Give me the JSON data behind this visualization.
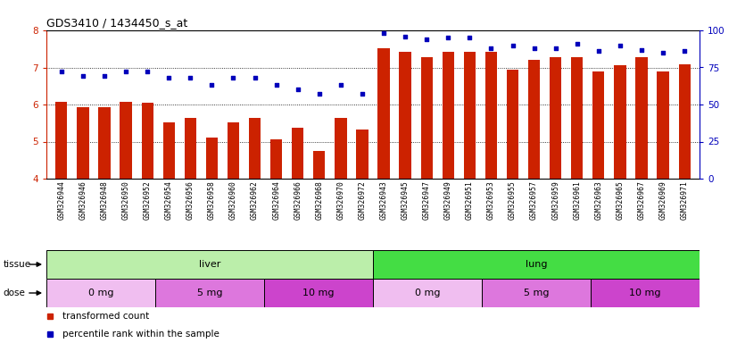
{
  "title": "GDS3410 / 1434450_s_at",
  "samples": [
    "GSM326944",
    "GSM326946",
    "GSM326948",
    "GSM326950",
    "GSM326952",
    "GSM326954",
    "GSM326956",
    "GSM326958",
    "GSM326960",
    "GSM326962",
    "GSM326964",
    "GSM326966",
    "GSM326968",
    "GSM326970",
    "GSM326972",
    "GSM326943",
    "GSM326945",
    "GSM326947",
    "GSM326949",
    "GSM326951",
    "GSM326953",
    "GSM326955",
    "GSM326957",
    "GSM326959",
    "GSM326961",
    "GSM326963",
    "GSM326965",
    "GSM326967",
    "GSM326969",
    "GSM326971"
  ],
  "bar_values": [
    6.08,
    5.93,
    5.93,
    6.08,
    6.05,
    5.52,
    5.65,
    5.1,
    5.52,
    5.65,
    5.07,
    5.38,
    4.75,
    5.65,
    5.33,
    7.52,
    7.42,
    7.28,
    7.43,
    7.43,
    7.43,
    6.93,
    7.2,
    7.28,
    7.28,
    6.88,
    7.05,
    7.28,
    6.9,
    7.08
  ],
  "percentile_values": [
    72,
    69,
    69,
    72,
    72,
    68,
    68,
    63,
    68,
    68,
    63,
    60,
    57,
    63,
    57,
    98,
    96,
    94,
    95,
    95,
    88,
    90,
    88,
    88,
    91,
    86,
    90,
    87,
    85,
    86
  ],
  "bar_color": "#cc2200",
  "dot_color": "#0000bb",
  "bar_bottom": 4.0,
  "ylim_left": [
    4.0,
    8.0
  ],
  "ylim_right": [
    0,
    100
  ],
  "yticks_left": [
    4,
    5,
    6,
    7,
    8
  ],
  "yticks_right": [
    0,
    25,
    50,
    75,
    100
  ],
  "chart_bg": "#ffffff",
  "xtick_bg": "#d8d8d8",
  "tissue_groups": [
    {
      "label": "liver",
      "start": 0,
      "end": 15,
      "color": "#bbeeaa"
    },
    {
      "label": "lung",
      "start": 15,
      "end": 30,
      "color": "#44dd44"
    }
  ],
  "dose_groups": [
    {
      "label": "0 mg",
      "start": 0,
      "end": 5,
      "color": "#f0bef0"
    },
    {
      "label": "5 mg",
      "start": 5,
      "end": 10,
      "color": "#dd77dd"
    },
    {
      "label": "10 mg",
      "start": 10,
      "end": 15,
      "color": "#cc44cc"
    },
    {
      "label": "0 mg",
      "start": 15,
      "end": 20,
      "color": "#f0bef0"
    },
    {
      "label": "5 mg",
      "start": 20,
      "end": 25,
      "color": "#dd77dd"
    },
    {
      "label": "10 mg",
      "start": 25,
      "end": 30,
      "color": "#cc44cc"
    }
  ],
  "legend_items": [
    {
      "color": "#cc2200",
      "label": "transformed count"
    },
    {
      "color": "#0000bb",
      "label": "percentile rank within the sample"
    }
  ]
}
